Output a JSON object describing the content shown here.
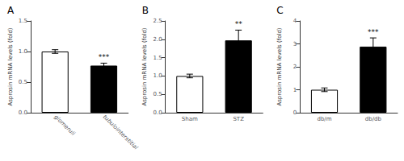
{
  "chart_data": [
    {
      "type": "bar",
      "title": "A",
      "ylabel": "Asprosin mRNA levels (fold)",
      "categories": [
        "glomeruli",
        "tubulointerstitial"
      ],
      "values": [
        1.0,
        0.77
      ],
      "errors": [
        0.03,
        0.04
      ],
      "colors": [
        "white",
        "black"
      ],
      "ylim": [
        0,
        1.5
      ],
      "yticks": [
        {
          "value": 0.0,
          "label": "0.0"
        },
        0.5,
        {
          "value": 1.0,
          "label": "1.0"
        },
        1.5
      ],
      "annotations": [
        {
          "category": "tubulointerstitial",
          "text": "***"
        }
      ],
      "grid": false
    },
    {
      "type": "bar",
      "title": "B",
      "ylabel": "Asprosin mRNA levels (fold)",
      "categories": [
        "Sham",
        "STZ"
      ],
      "values": [
        1.0,
        1.97
      ],
      "errors": [
        0.05,
        0.28
      ],
      "colors": [
        "white",
        "black"
      ],
      "ylim": [
        0,
        2.5
      ],
      "yticks": [
        {
          "value": 0.0,
          "label": "0.0"
        },
        0.5,
        {
          "value": 1.0,
          "label": "1.0"
        },
        1.5,
        {
          "value": 2.0,
          "label": "2.0"
        },
        2.5
      ],
      "annotations": [
        {
          "category": "STZ",
          "text": "**"
        }
      ],
      "grid": false
    },
    {
      "type": "bar",
      "title": "C",
      "ylabel": "Asprosin mRNA levels (fold)",
      "categories": [
        "db/m",
        "db/db"
      ],
      "values": [
        1.0,
        2.88
      ],
      "errors": [
        0.08,
        0.38
      ],
      "colors": [
        "white",
        "black"
      ],
      "ylim": [
        0,
        4
      ],
      "yticks": [
        0,
        1,
        2,
        3,
        4
      ],
      "annotations": [
        {
          "category": "db/db",
          "text": "***"
        }
      ],
      "grid": false
    }
  ]
}
